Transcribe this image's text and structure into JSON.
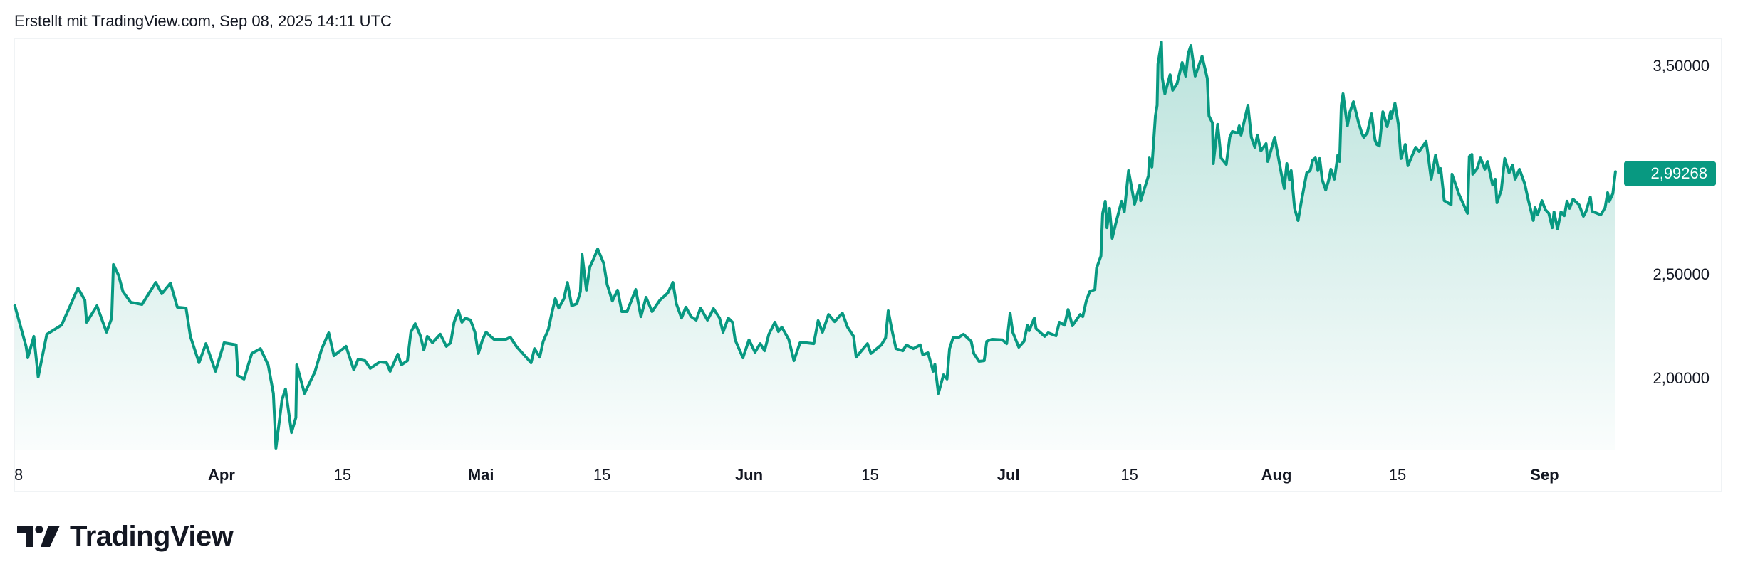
{
  "header": {
    "created_text": "Erstellt mit TradingView.com, Sep 08, 2025 14:11 UTC"
  },
  "branding": {
    "logo_icon": "tradingview-logo-icon",
    "logo_text": "TradingView"
  },
  "colors": {
    "line": "#089981",
    "badge_bg": "#089981",
    "badge_text": "#ffffff",
    "fill_top": "rgba(8,153,129,0.28)",
    "fill_bottom": "rgba(8,153,129,0.02)",
    "frame_border": "#f0f3f5",
    "text": "#131722"
  },
  "price_badge": {
    "value": "2,99268"
  },
  "chart_data": {
    "type": "area",
    "title": "",
    "xlabel": "",
    "ylabel": "",
    "x_unit": "days since Mar 08, 2025",
    "ylim": [
      1.6,
      3.65
    ],
    "grid": false,
    "legend": null,
    "last_value": 2.99268,
    "y_ticks": [
      {
        "value": 3.5,
        "label": "3,50000"
      },
      {
        "value": 2.5,
        "label": "2,50000"
      },
      {
        "value": 2.0,
        "label": "2,00000"
      }
    ],
    "x_ticks": [
      {
        "day": 0.5,
        "label": "8",
        "bold": false
      },
      {
        "day": 24,
        "label": "Apr",
        "bold": true
      },
      {
        "day": 38,
        "label": "15",
        "bold": false
      },
      {
        "day": 54,
        "label": "Mai",
        "bold": true
      },
      {
        "day": 68,
        "label": "15",
        "bold": false
      },
      {
        "day": 85,
        "label": "Jun",
        "bold": true
      },
      {
        "day": 99,
        "label": "15",
        "bold": false
      },
      {
        "day": 115,
        "label": "Jul",
        "bold": true
      },
      {
        "day": 129,
        "label": "15",
        "bold": false
      },
      {
        "day": 146,
        "label": "Aug",
        "bold": true
      },
      {
        "day": 160,
        "label": "15",
        "bold": false
      },
      {
        "day": 177,
        "label": "Sep",
        "bold": true
      }
    ],
    "x": [
      0.1,
      1.4,
      1.6,
      2.3,
      2.8,
      3.8,
      5.5,
      6.5,
      7.4,
      8.2,
      8.4,
      9.6,
      10.7,
      11.3,
      11.5,
      12.1,
      12.6,
      13.5,
      14.8,
      16.4,
      17.1,
      18.1,
      18.9,
      19.9,
      20.4,
      21.4,
      22.2,
      23.3,
      24.3,
      25.7,
      25.9,
      26.6,
      27.5,
      28.5,
      29.4,
      30.0,
      30.3,
      31.0,
      31.4,
      32.1,
      32.6,
      32.7,
      33.6,
      34.8,
      35.6,
      36.4,
      37.0,
      38.4,
      39.3,
      39.8,
      40.6,
      41.2,
      42.3,
      43.1,
      43.5,
      44.4,
      44.8,
      45.5,
      45.9,
      46.4,
      47.0,
      47.4,
      47.8,
      48.4,
      49.3,
      50.0,
      50.5,
      50.9,
      51.4,
      51.8,
      52.2,
      52.8,
      53.3,
      53.7,
      54.2,
      54.6,
      55.5,
      56.9,
      57.4,
      58.1,
      58.7,
      59.8,
      60.2,
      60.8,
      61.2,
      61.8,
      62.2,
      62.6,
      63.0,
      63.6,
      64.0,
      64.5,
      65.1,
      65.5,
      65.7,
      66.2,
      66.6,
      67.0,
      67.5,
      68.2,
      68.6,
      69.2,
      69.8,
      70.3,
      70.9,
      71.9,
      72.5,
      73.1,
      73.8,
      74.7,
      75.6,
      76.2,
      76.6,
      77.2,
      77.7,
      78.3,
      78.9,
      79.4,
      80.2,
      80.9,
      81.6,
      82.0,
      82.6,
      83.1,
      83.4,
      84.3,
      85.0,
      85.7,
      86.3,
      86.8,
      87.3,
      88.0,
      88.4,
      88.8,
      89.6,
      90.2,
      90.9,
      91.6,
      92.5,
      93.0,
      93.5,
      94.2,
      94.9,
      95.8,
      96.4,
      97.1,
      97.4,
      98.1,
      98.7,
      99.1,
      100.3,
      100.8,
      101.1,
      101.5,
      102.0,
      102.8,
      103.2,
      104.0,
      104.8,
      105.1,
      105.7,
      106.3,
      106.5,
      106.9,
      107.5,
      107.9,
      108.2,
      108.6,
      109.2,
      109.8,
      110.7,
      111.0,
      111.6,
      112.2,
      112.5,
      113.1,
      114.3,
      114.8,
      115.2,
      115.5,
      116.2,
      116.8,
      117.2,
      117.4,
      118.0,
      118.2,
      119.2,
      119.6,
      120.5,
      120.9,
      121.5,
      121.9,
      122.4,
      123.3,
      123.6,
      124.0,
      124.4,
      125.0,
      125.2,
      125.7,
      125.9,
      126.2,
      126.4,
      126.7,
      127.0,
      127.5,
      128.1,
      128.4,
      128.9,
      129.6,
      130.2,
      130.3,
      131.2,
      131.3,
      131.6,
      132.0,
      132.2,
      132.3,
      132.7,
      132.8,
      133.1,
      133.7,
      134.0,
      134.5,
      135.1,
      135.5,
      135.8,
      136.1,
      136.6,
      137.4,
      138.0,
      138.2,
      138.6,
      138.7,
      139.2,
      139.6,
      140.2,
      140.6,
      140.9,
      141.5,
      141.7,
      141.9,
      142.7,
      143.1,
      143.5,
      143.8,
      144.2,
      144.8,
      145.0,
      145.8,
      146.5,
      146.9,
      147.2,
      147.5,
      147.7,
      148.1,
      148.5,
      148.9,
      149.5,
      149.9,
      150.2,
      150.5,
      150.8,
      151.0,
      151.3,
      151.7,
      152.0,
      152.3,
      152.7,
      153.0,
      153.1,
      153.3,
      153.5,
      153.7,
      154.2,
      154.5,
      154.9,
      155.5,
      155.9,
      156.1,
      156.5,
      157.0,
      157.4,
      157.6,
      157.9,
      158.3,
      158.8,
      159.2,
      159.25,
      159.7,
      160.1,
      160.4,
      160.9,
      161.2,
      162.1,
      162.5,
      163.3,
      163.5,
      163.9,
      164.4,
      164.8,
      165.0,
      165.4,
      166.2,
      166.3,
      167.1,
      168.1,
      168.3,
      168.6,
      168.7,
      169.2,
      169.6,
      170.1,
      170.4,
      171.0,
      171.3,
      171.5,
      172.0,
      172.4,
      172.9,
      173.3,
      173.6,
      174.1,
      174.7,
      175.1,
      175.7,
      175.9,
      176.2,
      176.7,
      177.1,
      177.5,
      177.9,
      178.1,
      178.5,
      178.9,
      179.3,
      179.6,
      179.9,
      180.3,
      181.0,
      181.5,
      181.8,
      182.3,
      182.5,
      183.5,
      184.0,
      184.3,
      184.5,
      184.9,
      185.2
    ],
    "values": [
      2.349,
      2.154,
      2.099,
      2.202,
      2.007,
      2.212,
      2.256,
      2.349,
      2.434,
      2.376,
      2.27,
      2.349,
      2.222,
      2.29,
      2.547,
      2.495,
      2.417,
      2.366,
      2.355,
      2.461,
      2.407,
      2.458,
      2.342,
      2.338,
      2.202,
      2.075,
      2.167,
      2.034,
      2.171,
      2.161,
      2.014,
      1.997,
      2.12,
      2.143,
      2.065,
      1.928,
      1.665,
      1.897,
      1.949,
      1.74,
      1.812,
      2.065,
      1.928,
      2.031,
      2.143,
      2.219,
      2.109,
      2.154,
      2.041,
      2.092,
      2.085,
      2.048,
      2.079,
      2.075,
      2.034,
      2.116,
      2.065,
      2.085,
      2.222,
      2.263,
      2.205,
      2.137,
      2.202,
      2.171,
      2.212,
      2.154,
      2.171,
      2.27,
      2.325,
      2.27,
      2.29,
      2.28,
      2.222,
      2.12,
      2.188,
      2.222,
      2.188,
      2.188,
      2.198,
      2.154,
      2.126,
      2.075,
      2.143,
      2.102,
      2.178,
      2.236,
      2.314,
      2.383,
      2.338,
      2.383,
      2.461,
      2.349,
      2.359,
      2.417,
      2.595,
      2.424,
      2.536,
      2.571,
      2.622,
      2.553,
      2.451,
      2.372,
      2.424,
      2.321,
      2.321,
      2.427,
      2.297,
      2.389,
      2.321,
      2.376,
      2.41,
      2.461,
      2.359,
      2.29,
      2.342,
      2.297,
      2.28,
      2.338,
      2.28,
      2.335,
      2.29,
      2.222,
      2.29,
      2.27,
      2.185,
      2.099,
      2.185,
      2.126,
      2.167,
      2.133,
      2.212,
      2.27,
      2.225,
      2.246,
      2.188,
      2.085,
      2.171,
      2.171,
      2.167,
      2.277,
      2.222,
      2.307,
      2.273,
      2.314,
      2.246,
      2.202,
      2.102,
      2.137,
      2.167,
      2.12,
      2.161,
      2.195,
      2.325,
      2.239,
      2.143,
      2.133,
      2.161,
      2.143,
      2.161,
      2.113,
      2.123,
      2.034,
      2.068,
      1.928,
      2.017,
      1.997,
      2.143,
      2.195,
      2.195,
      2.212,
      2.178,
      2.12,
      2.082,
      2.085,
      2.178,
      2.188,
      2.185,
      2.167,
      2.314,
      2.222,
      2.15,
      2.178,
      2.256,
      2.229,
      2.29,
      2.239,
      2.202,
      2.219,
      2.205,
      2.27,
      2.256,
      2.331,
      2.253,
      2.307,
      2.297,
      2.372,
      2.417,
      2.427,
      2.53,
      2.588,
      2.793,
      2.851,
      2.724,
      2.817,
      2.673,
      2.759,
      2.851,
      2.8,
      2.998,
      2.837,
      2.929,
      2.854,
      2.974,
      3.059,
      3.015,
      3.261,
      3.312,
      3.51,
      3.616,
      3.442,
      3.367,
      3.459,
      3.384,
      3.415,
      3.517,
      3.452,
      3.562,
      3.599,
      3.452,
      3.548,
      3.442,
      3.261,
      3.227,
      3.032,
      3.22,
      3.059,
      3.028,
      3.158,
      3.186,
      3.179,
      3.213,
      3.169,
      3.312,
      3.158,
      3.11,
      3.169,
      3.093,
      3.128,
      3.042,
      3.158,
      2.998,
      2.912,
      3.032,
      2.953,
      2.998,
      2.817,
      2.759,
      2.854,
      2.987,
      2.998,
      3.049,
      3.059,
      2.998,
      3.056,
      2.953,
      2.905,
      2.946,
      3.005,
      2.957,
      3.042,
      3.073,
      3.042,
      3.312,
      3.367,
      3.213,
      3.281,
      3.329,
      3.227,
      3.175,
      3.158,
      3.179,
      3.271,
      3.145,
      3.124,
      3.117,
      3.281,
      3.21,
      3.281,
      3.247,
      3.322,
      3.22,
      3.056,
      3.124,
      3.022,
      3.11,
      3.09,
      3.138,
      3.083,
      2.957,
      3.073,
      2.987,
      3.008,
      2.854,
      2.834,
      2.981,
      2.885,
      2.793,
      3.066,
      3.076,
      2.981,
      3.008,
      3.059,
      3.005,
      3.042,
      2.929,
      2.957,
      2.844,
      2.905,
      3.056,
      2.987,
      3.025,
      2.957,
      3.005,
      2.936,
      2.861,
      2.759,
      2.82,
      2.786,
      2.854,
      2.81,
      2.793,
      2.724,
      2.8,
      2.718,
      2.8,
      2.782,
      2.851,
      2.817,
      2.861,
      2.834,
      2.779,
      2.803,
      2.871,
      2.803,
      2.786,
      2.82,
      2.892,
      2.851,
      2.888,
      2.993
    ]
  }
}
